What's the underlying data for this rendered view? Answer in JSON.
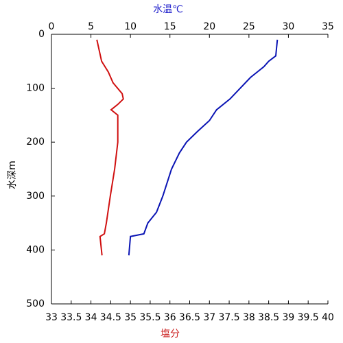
{
  "chart_data": {
    "type": "profile",
    "x2label": "水温℃",
    "x2label_color": "#2222cc",
    "xlabel": "塩分",
    "xlabel_color": "#cc2222",
    "ylabel": "水深m",
    "xlim": [
      33,
      40
    ],
    "xticks": [
      33,
      33.5,
      34,
      34.5,
      35,
      35.5,
      36,
      36.5,
      37,
      37.5,
      38,
      38.5,
      39,
      39.5,
      40
    ],
    "x2lim": [
      0,
      35
    ],
    "x2ticks": [
      0,
      5,
      10,
      15,
      20,
      25,
      30,
      35
    ],
    "ylim": [
      0,
      500
    ],
    "yticks": [
      0,
      100,
      200,
      300,
      400,
      500
    ],
    "y_inverted": true,
    "series": [
      {
        "axis": "x2",
        "color": "#0a14b4",
        "depth": [
          10,
          40,
          50,
          60,
          80,
          100,
          120,
          140,
          160,
          180,
          200,
          220,
          250,
          300,
          330,
          350,
          370,
          375,
          410
        ],
        "values": [
          28.6,
          28.4,
          27.5,
          26.9,
          25.2,
          23.9,
          22.6,
          20.9,
          20.0,
          18.5,
          17.1,
          16.2,
          15.2,
          14.1,
          13.3,
          12.2,
          11.7,
          10.0,
          9.8
        ]
      },
      {
        "axis": "x",
        "color": "#d01010",
        "depth": [
          10,
          50,
          70,
          90,
          110,
          120,
          130,
          140,
          150,
          200,
          250,
          300,
          350,
          370,
          375,
          410
        ],
        "values": [
          34.15,
          34.27,
          34.44,
          34.56,
          34.79,
          34.82,
          34.68,
          34.51,
          34.68,
          34.68,
          34.6,
          34.49,
          34.39,
          34.34,
          34.23,
          34.28
        ]
      }
    ]
  }
}
